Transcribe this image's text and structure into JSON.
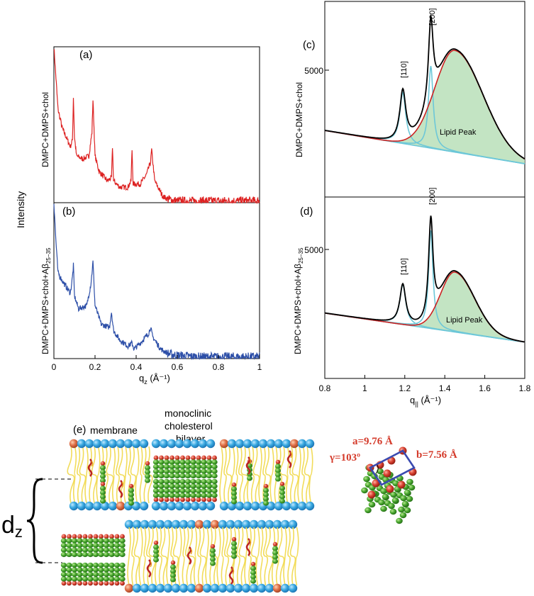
{
  "figure": {
    "ylabel_left": "Intensity",
    "dz_label": "d",
    "dz_sub": "z"
  },
  "chart_data": [
    {
      "panel": "(a)",
      "type": "line",
      "ylabel": "DMPC+DMPS+chol",
      "xlabel": "q",
      "xlabel_sub": "z",
      "xlabel_unit": " (Å⁻¹)",
      "xlim": [
        0,
        1
      ],
      "xticks": [
        "0",
        "0.2",
        "0.4",
        "0.6",
        "0.8",
        "1"
      ],
      "color": "#dd2222",
      "peaks_qz": [
        0.095,
        0.19,
        0.285,
        0.38,
        0.475
      ],
      "x": [
        0,
        0.01,
        0.02,
        0.04,
        0.06,
        0.08,
        0.09,
        0.095,
        0.1,
        0.11,
        0.14,
        0.17,
        0.185,
        0.19,
        0.2,
        0.22,
        0.26,
        0.28,
        0.285,
        0.29,
        0.32,
        0.36,
        0.375,
        0.38,
        0.385,
        0.42,
        0.45,
        0.47,
        0.475,
        0.49,
        0.53,
        0.56,
        0.6,
        0.7,
        0.8,
        0.9,
        1.0
      ],
      "y": [
        1.0,
        0.8,
        0.6,
        0.48,
        0.42,
        0.36,
        0.4,
        0.68,
        0.42,
        0.3,
        0.28,
        0.3,
        0.45,
        0.66,
        0.3,
        0.2,
        0.14,
        0.16,
        0.36,
        0.14,
        0.1,
        0.1,
        0.14,
        0.34,
        0.12,
        0.12,
        0.18,
        0.26,
        0.34,
        0.14,
        0.04,
        0.02,
        0.01,
        0.01,
        0.01,
        0.01,
        0.01
      ]
    },
    {
      "panel": "(b)",
      "type": "line",
      "ylabel": "DMPC+DMPS+chol+Aβ",
      "ylabel_sub": "25−35",
      "xlim": [
        0,
        1
      ],
      "color": "#2d4fa8",
      "x": [
        0,
        0.01,
        0.02,
        0.04,
        0.06,
        0.08,
        0.09,
        0.095,
        0.1,
        0.12,
        0.16,
        0.18,
        0.19,
        0.2,
        0.23,
        0.27,
        0.28,
        0.29,
        0.32,
        0.36,
        0.38,
        0.39,
        0.42,
        0.46,
        0.47,
        0.48,
        0.52,
        0.56,
        0.6,
        0.7,
        0.8,
        0.9,
        1.0
      ],
      "y": [
        1.0,
        0.75,
        0.55,
        0.5,
        0.46,
        0.42,
        0.52,
        0.6,
        0.4,
        0.32,
        0.34,
        0.48,
        0.62,
        0.34,
        0.22,
        0.2,
        0.3,
        0.18,
        0.12,
        0.08,
        0.1,
        0.06,
        0.1,
        0.16,
        0.2,
        0.14,
        0.06,
        0.03,
        0.02,
        0.01,
        0.01,
        0.01,
        0.01
      ]
    },
    {
      "panel": "(c)",
      "type": "line",
      "ylabel": "DMPC+DMPS+chol",
      "ytick": "5000",
      "peak_labels": [
        "[110]",
        "[200]"
      ],
      "peak_positions": [
        1.19,
        1.33
      ],
      "annotation": "Lipid Peak",
      "lipid_peak_center": 1.45,
      "xlim": [
        0.8,
        1.8
      ]
    },
    {
      "panel": "(d)",
      "type": "line",
      "ylabel": "DMPC+DMPS+chol+Aβ",
      "ylabel_sub": "25−35",
      "ytick": "5000",
      "peak_labels": [
        "[110]",
        "[200]"
      ],
      "peak_positions": [
        1.19,
        1.33
      ],
      "annotation": "Lipid Peak",
      "lipid_peak_center": 1.45,
      "xlabel": "q",
      "xlabel_sub": "||",
      "xlabel_unit": " (Å⁻¹)",
      "xlim": [
        0.8,
        1.8
      ],
      "xticks": [
        "0.8",
        "1",
        "1.2",
        "1.4",
        "1.6",
        "1.8"
      ]
    }
  ],
  "panel_e": {
    "label": "(e)",
    "membrane_label": "membrane",
    "bilayer_label_1": "monoclinic",
    "bilayer_label_2": "cholesterol",
    "bilayer_label_3": "bilayer",
    "lattice_a": "a=9.76 Å",
    "lattice_b": "b=7.56 Å",
    "lattice_gamma": "γ=103º"
  },
  "colors": {
    "red_trace": "#dd2222",
    "blue_trace": "#2d4fa8",
    "fit_black": "#000000",
    "fit_red": "#cc2222",
    "fit_cyan": "#6cc7d8",
    "lipid_fill": "#b9dfb9",
    "head_blue": "#38a8e0",
    "chain_yellow": "#f2dc5a",
    "chol_green": "#3f9a2c",
    "head_orange": "#e07048",
    "lattice_red": "#d43a2a",
    "lattice_box": "#3a4ab0"
  }
}
